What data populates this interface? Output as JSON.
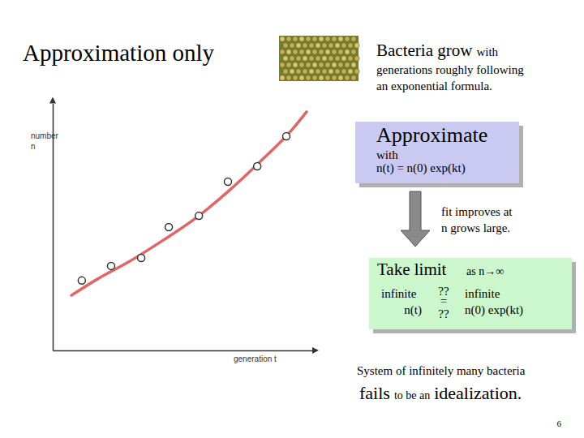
{
  "chart_data": {
    "type": "scatter",
    "x_label": "generation t",
    "y_label": "number\nn",
    "xlim": [
      0,
      10
    ],
    "ylim": [
      0,
      10.5
    ],
    "xticks": [],
    "yticks": [],
    "tick_labels": false,
    "grid": false,
    "series": [
      {
        "type": "scatter",
        "marker": "open-circle",
        "color": "#333333",
        "x": [
          1.12,
          2.25,
          3.41,
          4.47,
          5.63,
          6.75,
          7.88,
          9.0
        ],
        "values": [
          2.97,
          3.59,
          3.93,
          5.24,
          5.72,
          7.17,
          7.83,
          9.1
        ]
      },
      {
        "type": "line",
        "line_style": "solid",
        "color": "#e06666",
        "x": [
          0.72,
          1.72,
          2.97,
          4.22,
          5.47,
          6.72,
          7.97,
          9.22,
          9.78
        ],
        "values": [
          2.34,
          3.03,
          3.79,
          4.66,
          5.59,
          6.72,
          8.0,
          9.38,
          10.14
        ]
      }
    ]
  },
  "slide": {
    "title": "Approximation only",
    "intro": [
      "Bacteria grow",
      "with"
    ],
    "intro_lines": [
      "generations roughly following",
      "an exponential formula."
    ],
    "approx_box": {
      "heading": "Approximate",
      "lines": [
        "with",
        "n(t) = n(0) exp(kt)"
      ]
    },
    "arrow_note": [
      "fit improves at",
      "n grows large."
    ],
    "limit_box": {
      "heading": "Take limit",
      "condition": "as n→∞",
      "left": [
        "infinite",
        "n(t)"
      ],
      "relation": [
        "??",
        "=",
        "??"
      ],
      "right": [
        "infinite",
        "n(0) exp(kt)"
      ]
    },
    "conclusion": "System of infinitely many bacteria",
    "verdict": [
      "fails",
      "to be an",
      "idealization."
    ],
    "page_number": "6"
  }
}
